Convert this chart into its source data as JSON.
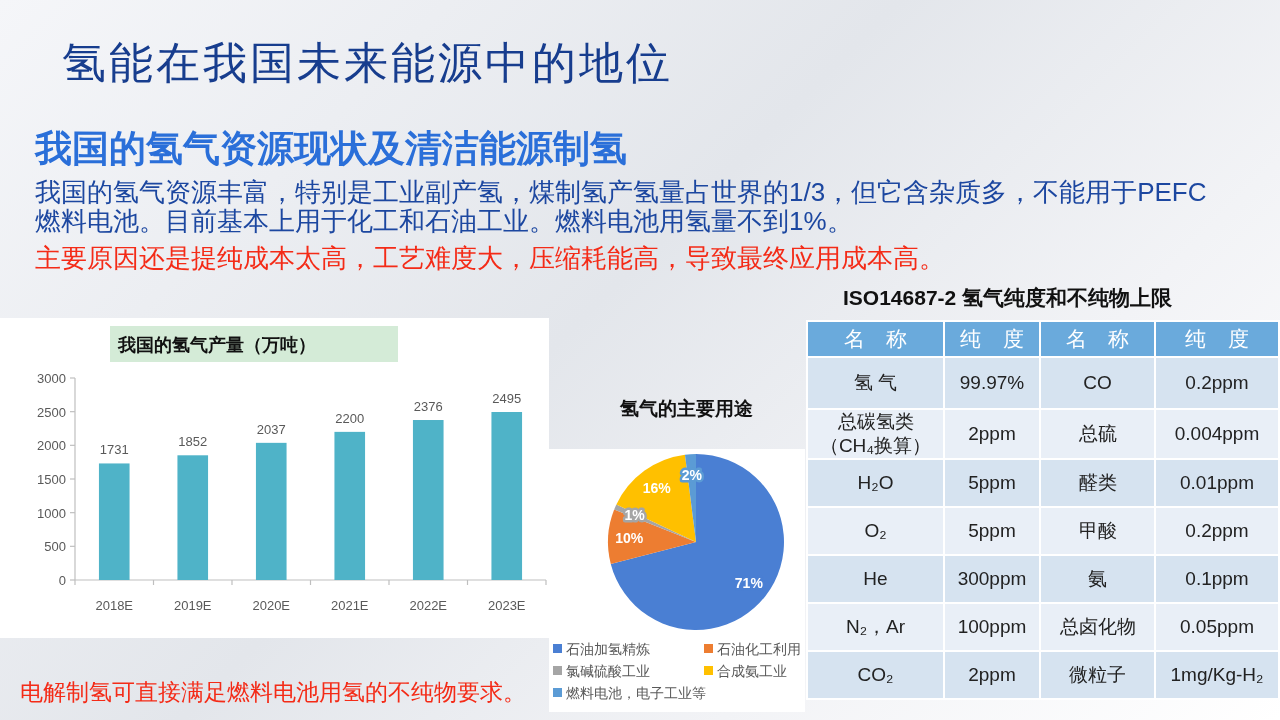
{
  "chart_data": [
    {
      "type": "other",
      "title": "氢能在我国未来能源中的地位",
      "subtitle": "我国的氢气资源现状及清洁能源制氢",
      "annotations": [
        "我国的氢气资源丰富，特别是工业副产氢，煤制氢产氢量占世界的1/3，但它含杂质多，不能用于PEFC燃料电池。目前基本上用于化工和石油工业。燃料电池用氢量不到1%。",
        "主要原因还是提纯成本太高，工艺难度大，压缩耗能高，导致最终应用成本高。",
        "电解制氢可直接满足燃料电池用氢的不纯物要求。"
      ]
    },
    {
      "type": "bar",
      "title": "我国的氢气产量（万吨）",
      "categories": [
        "2018E",
        "2019E",
        "2020E",
        "2021E",
        "2022E",
        "2023E"
      ],
      "values": [
        1731,
        1852,
        2037,
        2200,
        2376,
        2495
      ],
      "color": "#4fb3c8",
      "ylim": [
        0,
        3000
      ],
      "yticks": [
        0,
        500,
        1000,
        1500,
        2000,
        2500,
        3000
      ],
      "data_labels": true
    },
    {
      "type": "pie",
      "title": "氢气的主要用途",
      "categories": [
        "石油加氢精炼",
        "石油化工利用",
        "氯碱硫酸工业",
        "合成氨工业",
        "燃料电池，电子工业等"
      ],
      "values": [
        71,
        10,
        1,
        16,
        2
      ],
      "colors": [
        "#4a7fd3",
        "#ed7d31",
        "#a5a5a5",
        "#ffc000",
        "#5b9bd5"
      ],
      "value_labels": [
        "71%",
        "10%",
        "1%",
        "16%",
        "2%"
      ],
      "legend": "bottom"
    },
    {
      "type": "other",
      "title": "ISO14687-2 氢气纯度和不纯物上限",
      "categories": [
        "名 称",
        "纯 度",
        "名 称",
        "纯 度"
      ],
      "cell_labels": [
        [
          "氢 气",
          "99.97%",
          "CO",
          "0.2ppm"
        ],
        [
          "总碳氢类（CH₄换算）",
          "2ppm",
          "总硫",
          "0.004ppm"
        ],
        [
          "H₂O",
          "5ppm",
          "醛类",
          "0.01ppm"
        ],
        [
          "O₂",
          "5ppm",
          "甲酸",
          "0.2ppm"
        ],
        [
          "He",
          "300ppm",
          "氨",
          "0.1ppm"
        ],
        [
          "N₂，Ar",
          "100ppm",
          "总卤化物",
          "0.05ppm"
        ],
        [
          "CO₂",
          "2ppm",
          "微粒子",
          "1mg/Kg-H₂"
        ]
      ]
    }
  ]
}
